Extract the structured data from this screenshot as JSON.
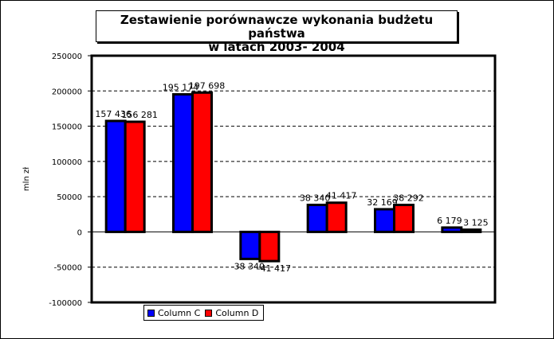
{
  "chart_data": {
    "type": "bar",
    "title_lines": [
      "Zestawienie porównawcze wykonania budżetu państwa",
      "w latach 2003- 2004"
    ],
    "ylabel": "mln zł",
    "ylim": [
      -100000,
      250000
    ],
    "yticks": [
      250000,
      200000,
      150000,
      100000,
      50000,
      0,
      -50000,
      -100000
    ],
    "ytick_labels": [
      "250000",
      "200000",
      "150000",
      "100000",
      "50000",
      "0",
      "-50000",
      "-100000"
    ],
    "grid": "horizontal-dashed",
    "legend_position": "bottom-left",
    "categories": [
      "",
      "",
      "",
      "",
      "",
      ""
    ],
    "series": [
      {
        "name": "Column C",
        "color": "#0000ff",
        "values": [
          157436,
          195174,
          -38340,
          38340,
          32169,
          6179
        ],
        "labels": [
          "157 436",
          "195 174",
          "-38 340",
          "38 340",
          "32 169",
          "6 179"
        ]
      },
      {
        "name": "Column D",
        "color": "#ff0000",
        "values": [
          156281,
          197698,
          -41417,
          41417,
          38292,
          3125
        ],
        "labels": [
          "156 281",
          "197 698",
          "-41 417",
          "41 417",
          "38 292",
          "3 125"
        ]
      }
    ]
  }
}
